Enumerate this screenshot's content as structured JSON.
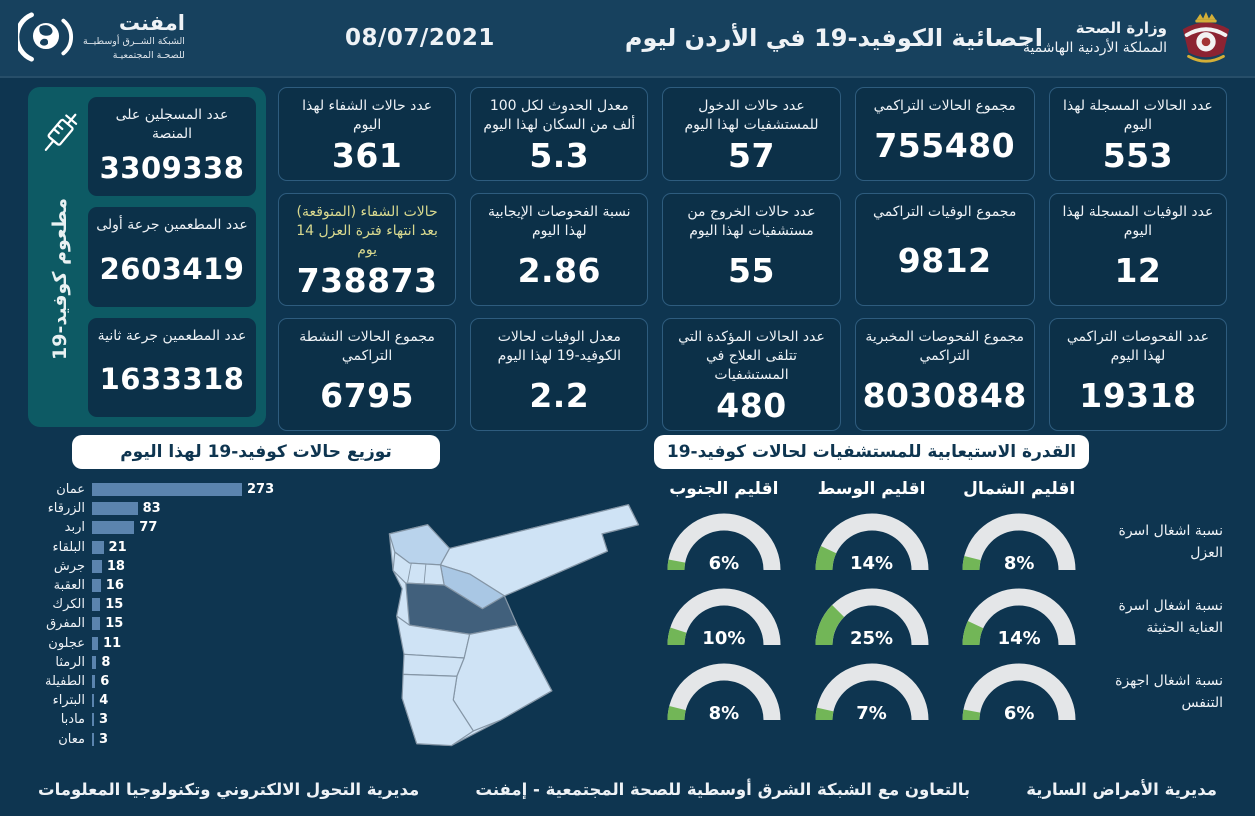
{
  "header": {
    "title": "احصائية الكوفيد-19 في الأردن ليوم",
    "date": "08/07/2021",
    "logo": {
      "name": "امفنت",
      "line1": "الشبكة الشــرق أوسطيــة",
      "line2": "للصحـة المجتمعيـة"
    },
    "ministry": {
      "line1": "وزارة الصحة",
      "line2": "المملكة الأردنية الهاشمية"
    }
  },
  "vaccination": {
    "side_label": "مطعوم كوفيد-19",
    "boxes": [
      {
        "label": "عدد المسجلين على المنصة",
        "value": "3309338"
      },
      {
        "label": "عدد المطعمين جرعة أولى",
        "value": "2603419"
      },
      {
        "label": "عدد المطعمين جرعة ثانية",
        "value": "1633318"
      }
    ]
  },
  "stat_cards": [
    {
      "label": "عدد الحالات المسجلة لهذا اليوم",
      "value": "553"
    },
    {
      "label": "مجموع الحالات التراكمي",
      "value": "755480"
    },
    {
      "label": "عدد حالات الدخول للمستشفيات لهذا اليوم",
      "value": "57"
    },
    {
      "label": "معدل الحدوث لكل 100 ألف من السكان لهذا اليوم",
      "value": "5.3"
    },
    {
      "label": "عدد حالات الشفاء لهذا اليوم",
      "value": "361"
    },
    {
      "label": "عدد الوفيات المسجلة لهذا اليوم",
      "value": "12"
    },
    {
      "label": "مجموع الوفيات التراكمي",
      "value": "9812"
    },
    {
      "label": "عدد حالات الخروج من مستشفيات لهذا اليوم",
      "value": "55"
    },
    {
      "label": "نسبة الفحوصات الإيجابية لهذا اليوم",
      "value": "2.86"
    },
    {
      "label": "حالات الشفاء (المتوقعة) بعد انتهاء فترة العزل 14 يوم",
      "value": "738873",
      "highlight": true
    },
    {
      "label": "عدد الفحوصات التراكمي لهذا اليوم",
      "value": "19318"
    },
    {
      "label": "مجموع الفحوصات المخبرية التراكمي",
      "value": "8030848"
    },
    {
      "label": "عدد الحالات المؤكدة التي تتلقى العلاج في المستشفيات",
      "value": "480"
    },
    {
      "label": "معدل الوفيات لحالات الكوفيد-19 لهذا اليوم",
      "value": "2.2"
    },
    {
      "label": "مجموع الحالات النشطة التراكمي",
      "value": "6795"
    }
  ],
  "chart_data": [
    {
      "type": "bar",
      "title": "توزيع حالات كوفيد-19 لهذا اليوم",
      "orientation": "horizontal",
      "categories": [
        "عمان",
        "الزرقاء",
        "اربد",
        "البلقاء",
        "جرش",
        "العقبة",
        "الكرك",
        "المفرق",
        "عجلون",
        "الرمثا",
        "الطفيلة",
        "البتراء",
        "مادبا",
        "معان"
      ],
      "values": [
        273,
        83,
        77,
        21,
        18,
        16,
        15,
        15,
        11,
        8,
        6,
        4,
        3,
        3
      ],
      "value_labels": true,
      "xlim": [
        0,
        273
      ]
    },
    {
      "type": "gauge-grid",
      "title": "القدرة الاستيعابية للمستشفيات لحالات كوفيد-19",
      "columns": [
        "اقليم الشمال",
        "اقليم الوسط",
        "اقليم الجنوب"
      ],
      "rows": [
        "نسبة اشغال اسرة العزل",
        "نسبة اشغال اسرة العناية الحثيثة",
        "نسبة اشغال اجهزة التنفس"
      ],
      "values_pct": [
        [
          8,
          14,
          6
        ],
        [
          14,
          25,
          10
        ],
        [
          6,
          7,
          8
        ]
      ],
      "unit": "%"
    }
  ],
  "map": {
    "country": "الأردن",
    "darkest_region_note": "عمان",
    "medium_region_note": "الزرقاء"
  },
  "footer": {
    "left": "مديرية التحول الالكتروني وتكنولوجيا المعلومات",
    "center": "بالتعاون مع الشبكة الشرق أوسطية للصحة المجتمعية - إمفنت",
    "right": "مديرية الأمراض السارية"
  },
  "colors": {
    "background": "#0e3550",
    "header": "#17415e",
    "card": "#0c3048",
    "card_border": "#2e5c7e",
    "sidebar_teal": "#0d5a64",
    "bar": "#5b84ae",
    "gauge_track": "#e4e6e8",
    "gauge_fill": "#72b657",
    "highlight_label": "#d9d98f",
    "map_base": "#cfe3f5",
    "map_amman": "#41607c",
    "map_zarqa": "#a9c7e4",
    "map_irbid": "#b9d3ec"
  }
}
